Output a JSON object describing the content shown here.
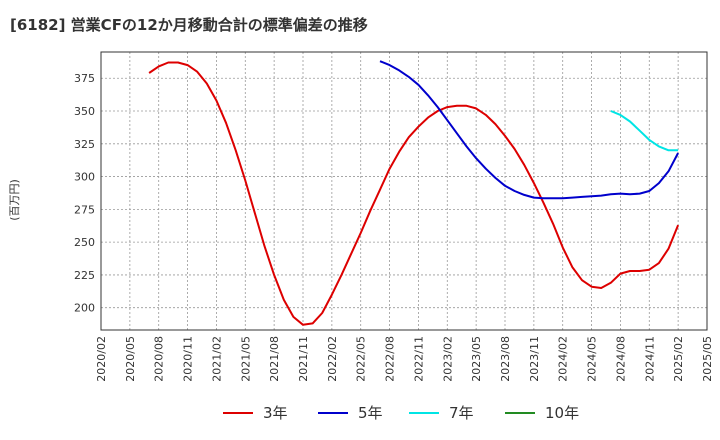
{
  "chart_data": {
    "type": "line",
    "title": "[6182]  営業CFの12か月移動合計の標準偏差の推移",
    "ylabel": "(百万円)",
    "xlabel": "",
    "x_ticks": [
      "2020/02",
      "2020/05",
      "2020/08",
      "2020/11",
      "2021/02",
      "2021/05",
      "2021/08",
      "2021/11",
      "2022/02",
      "2022/05",
      "2022/08",
      "2022/11",
      "2023/02",
      "2023/05",
      "2023/08",
      "2023/11",
      "2024/02",
      "2024/05",
      "2024/08",
      "2024/11",
      "2025/02",
      "2025/05"
    ],
    "y_ticks": [
      200,
      225,
      250,
      275,
      300,
      325,
      350,
      375
    ],
    "ylim": [
      183,
      395
    ],
    "grid": true,
    "legend_position": "bottom",
    "series": [
      {
        "name": "3年",
        "color": "#dd0000",
        "x": [
          "2020/07",
          "2020/08",
          "2020/09",
          "2020/10",
          "2020/11",
          "2020/12",
          "2021/01",
          "2021/02",
          "2021/03",
          "2021/04",
          "2021/05",
          "2021/06",
          "2021/07",
          "2021/08",
          "2021/09",
          "2021/10",
          "2021/11",
          "2021/12",
          "2022/01",
          "2022/02",
          "2022/03",
          "2022/04",
          "2022/05",
          "2022/06",
          "2022/07",
          "2022/08",
          "2022/09",
          "2022/10",
          "2022/11",
          "2022/12",
          "2023/01",
          "2023/02",
          "2023/03",
          "2023/04",
          "2023/05",
          "2023/06",
          "2023/07",
          "2023/08",
          "2023/09",
          "2023/10",
          "2023/11",
          "2023/12",
          "2024/01",
          "2024/02",
          "2024/03",
          "2024/04",
          "2024/05",
          "2024/06",
          "2024/07",
          "2024/08",
          "2024/09",
          "2024/10",
          "2024/11",
          "2024/12",
          "2025/01",
          "2025/02"
        ],
        "values": [
          379,
          384,
          387,
          387,
          385,
          380,
          371,
          358,
          341,
          320,
          297,
          272,
          247,
          225,
          206,
          193,
          187,
          188,
          196,
          210,
          225,
          241,
          257,
          274,
          290,
          306,
          319,
          330,
          338,
          345,
          350,
          353,
          354,
          354,
          352,
          347,
          340,
          331,
          321,
          309,
          295,
          280,
          264,
          246,
          231,
          221,
          216,
          215,
          219,
          226,
          228,
          228,
          229,
          234,
          245,
          263
        ]
      },
      {
        "name": "5年",
        "color": "#0000cc",
        "x": [
          "2022/07",
          "2022/08",
          "2022/09",
          "2022/10",
          "2022/11",
          "2022/12",
          "2023/01",
          "2023/02",
          "2023/03",
          "2023/04",
          "2023/05",
          "2023/06",
          "2023/07",
          "2023/08",
          "2023/09",
          "2023/10",
          "2023/11",
          "2023/12",
          "2024/01",
          "2024/02",
          "2024/03",
          "2024/04",
          "2024/05",
          "2024/06",
          "2024/07",
          "2024/08",
          "2024/09",
          "2024/10",
          "2024/11",
          "2024/12",
          "2025/01",
          "2025/02"
        ],
        "values": [
          388,
          385,
          381,
          376,
          370,
          362,
          353,
          343,
          333,
          323,
          314,
          306,
          299,
          293,
          289,
          286,
          284,
          283.5,
          283.5,
          283.5,
          284,
          284.5,
          285,
          285.5,
          286.5,
          287,
          286.5,
          287,
          289,
          295,
          304,
          318
        ]
      },
      {
        "name": "7年",
        "color": "#00e5e5",
        "x": [
          "2024/07",
          "2024/08",
          "2024/09",
          "2024/10",
          "2024/11",
          "2024/12",
          "2025/01",
          "2025/02"
        ],
        "values": [
          350,
          347,
          342,
          335,
          328,
          323,
          320,
          320
        ]
      },
      {
        "name": "10年",
        "color": "#228b22",
        "x": [],
        "values": []
      }
    ]
  }
}
